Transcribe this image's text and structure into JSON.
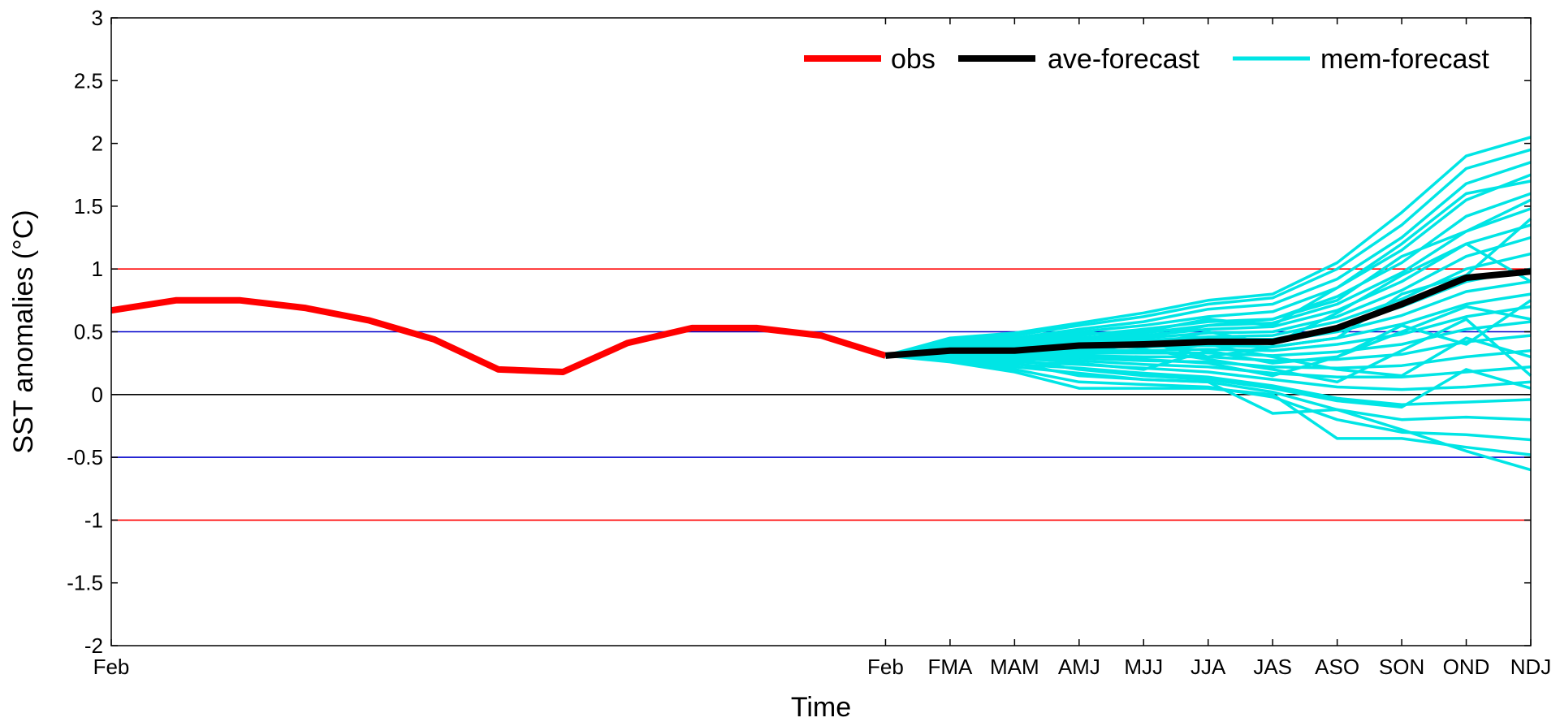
{
  "chart_data": {
    "type": "line",
    "title": "",
    "xlabel": "Time",
    "ylabel": "SST anomalies (°C)",
    "ylim": [
      -2,
      3
    ],
    "yticks": [
      "-2",
      "-1.5",
      "-1",
      "-0.5",
      "0",
      "0.5",
      "1",
      "1.5",
      "2",
      "2.5",
      "3"
    ],
    "x_tick_labels": [
      "Feb",
      "Feb",
      "FMA",
      "MAM",
      "AMJ",
      "MJJ",
      "JJA",
      "JAS",
      "ASO",
      "SON",
      "OND",
      "NDJ"
    ],
    "grid": false,
    "legend_position": "top-right",
    "reference_lines": [
      {
        "y": 1,
        "color": "#ff0000"
      },
      {
        "y": 0.5,
        "color": "#0000cc"
      },
      {
        "y": 0,
        "color": "#000000"
      },
      {
        "y": -0.5,
        "color": "#0000cc"
      },
      {
        "y": -1,
        "color": "#ff0000"
      }
    ],
    "series": [
      {
        "name": "obs",
        "color": "#ff0000",
        "x": [
          0,
          1,
          2,
          3,
          4,
          5,
          6,
          7,
          8,
          9,
          10,
          11,
          12
        ],
        "values": [
          0.67,
          0.75,
          0.75,
          0.69,
          0.59,
          0.44,
          0.2,
          0.18,
          0.41,
          0.53,
          0.53,
          0.47,
          0.31
        ]
      },
      {
        "name": "ave-forecast",
        "color": "#000000",
        "x": [
          12,
          13,
          14,
          15,
          16,
          17,
          18,
          19,
          20,
          21,
          22
        ],
        "values": [
          0.31,
          0.35,
          0.35,
          0.39,
          0.4,
          0.42,
          0.42,
          0.53,
          0.72,
          0.93,
          0.98
        ]
      },
      {
        "name": "mem-forecast",
        "color": "#00e5e5",
        "x": [
          12,
          13,
          14,
          15,
          16,
          17,
          18,
          19,
          20,
          21,
          22
        ],
        "members": [
          [
            0.31,
            0.45,
            0.49,
            0.57,
            0.65,
            0.75,
            0.8,
            1.05,
            1.45,
            1.9,
            2.05
          ],
          [
            0.31,
            0.43,
            0.47,
            0.55,
            0.62,
            0.72,
            0.77,
            1.0,
            1.35,
            1.8,
            1.95
          ],
          [
            0.31,
            0.41,
            0.45,
            0.52,
            0.58,
            0.68,
            0.72,
            0.92,
            1.25,
            1.68,
            1.85
          ],
          [
            0.31,
            0.4,
            0.43,
            0.5,
            0.55,
            0.62,
            0.66,
            0.85,
            1.15,
            1.55,
            1.75
          ],
          [
            0.31,
            0.39,
            0.42,
            0.47,
            0.52,
            0.58,
            0.6,
            0.78,
            1.05,
            1.42,
            1.6
          ],
          [
            0.31,
            0.38,
            0.4,
            0.45,
            0.49,
            0.55,
            0.57,
            0.72,
            0.97,
            1.3,
            1.48
          ],
          [
            0.31,
            0.37,
            0.39,
            0.44,
            0.47,
            0.52,
            0.54,
            0.67,
            0.9,
            1.2,
            1.35
          ],
          [
            0.31,
            0.37,
            0.38,
            0.43,
            0.45,
            0.49,
            0.5,
            0.62,
            0.83,
            1.1,
            1.25
          ],
          [
            0.31,
            0.36,
            0.37,
            0.41,
            0.43,
            0.46,
            0.47,
            0.58,
            0.76,
            1.0,
            1.12
          ],
          [
            0.31,
            0.36,
            0.36,
            0.4,
            0.41,
            0.44,
            0.44,
            0.54,
            0.7,
            0.9,
            1.0
          ],
          [
            0.31,
            0.35,
            0.35,
            0.39,
            0.4,
            0.42,
            0.42,
            0.5,
            0.63,
            0.82,
            0.9
          ],
          [
            0.31,
            0.34,
            0.34,
            0.37,
            0.38,
            0.39,
            0.38,
            0.45,
            0.56,
            0.72,
            0.8
          ],
          [
            0.31,
            0.34,
            0.33,
            0.35,
            0.35,
            0.36,
            0.35,
            0.4,
            0.48,
            0.62,
            0.7
          ],
          [
            0.31,
            0.33,
            0.32,
            0.33,
            0.33,
            0.33,
            0.31,
            0.34,
            0.4,
            0.52,
            0.58
          ],
          [
            0.31,
            0.32,
            0.31,
            0.31,
            0.3,
            0.3,
            0.27,
            0.28,
            0.32,
            0.42,
            0.47
          ],
          [
            0.31,
            0.31,
            0.29,
            0.29,
            0.27,
            0.26,
            0.22,
            0.21,
            0.23,
            0.3,
            0.35
          ],
          [
            0.31,
            0.31,
            0.28,
            0.27,
            0.24,
            0.22,
            0.17,
            0.14,
            0.14,
            0.18,
            0.22
          ],
          [
            0.31,
            0.3,
            0.26,
            0.24,
            0.21,
            0.18,
            0.12,
            0.06,
            0.04,
            0.06,
            0.1
          ],
          [
            0.31,
            0.29,
            0.24,
            0.21,
            0.17,
            0.14,
            0.07,
            -0.03,
            -0.08,
            -0.06,
            -0.04
          ],
          [
            0.31,
            0.28,
            0.22,
            0.17,
            0.12,
            0.1,
            0.02,
            -0.12,
            -0.2,
            -0.18,
            -0.2
          ],
          [
            0.31,
            0.27,
            0.2,
            0.1,
            0.08,
            0.06,
            -0.02,
            -0.2,
            -0.3,
            -0.32,
            -0.36
          ],
          [
            0.31,
            0.26,
            0.18,
            0.05,
            0.05,
            0.05,
            0.0,
            -0.35,
            -0.35,
            -0.42,
            -0.48
          ],
          [
            0.31,
            0.28,
            0.25,
            0.15,
            0.12,
            0.1,
            -0.15,
            -0.12,
            -0.28,
            -0.45,
            -0.6
          ],
          [
            0.31,
            0.29,
            0.28,
            0.2,
            0.15,
            0.12,
            0.05,
            -0.05,
            -0.1,
            0.2,
            0.05
          ],
          [
            0.31,
            0.32,
            0.3,
            0.25,
            0.2,
            0.35,
            0.25,
            0.3,
            0.5,
            0.7,
            0.6
          ],
          [
            0.31,
            0.35,
            0.4,
            0.5,
            0.45,
            0.55,
            0.6,
            0.75,
            1.1,
            1.3,
            1.55
          ],
          [
            0.31,
            0.4,
            0.36,
            0.42,
            0.38,
            0.5,
            0.4,
            0.65,
            0.95,
            1.2,
            0.9
          ],
          [
            0.31,
            0.33,
            0.38,
            0.34,
            0.42,
            0.3,
            0.38,
            0.45,
            0.8,
            0.95,
            1.4
          ],
          [
            0.31,
            0.36,
            0.31,
            0.38,
            0.33,
            0.4,
            0.3,
            0.2,
            0.15,
            0.45,
            0.3
          ],
          [
            0.31,
            0.3,
            0.34,
            0.3,
            0.28,
            0.25,
            0.15,
            0.3,
            0.55,
            0.4,
            0.75
          ],
          [
            0.31,
            0.38,
            0.44,
            0.48,
            0.5,
            0.6,
            0.55,
            0.85,
            1.2,
            1.6,
            1.7
          ],
          [
            0.31,
            0.34,
            0.36,
            0.32,
            0.36,
            0.28,
            0.2,
            0.1,
            0.35,
            0.6,
            0.15
          ]
        ]
      }
    ]
  }
}
